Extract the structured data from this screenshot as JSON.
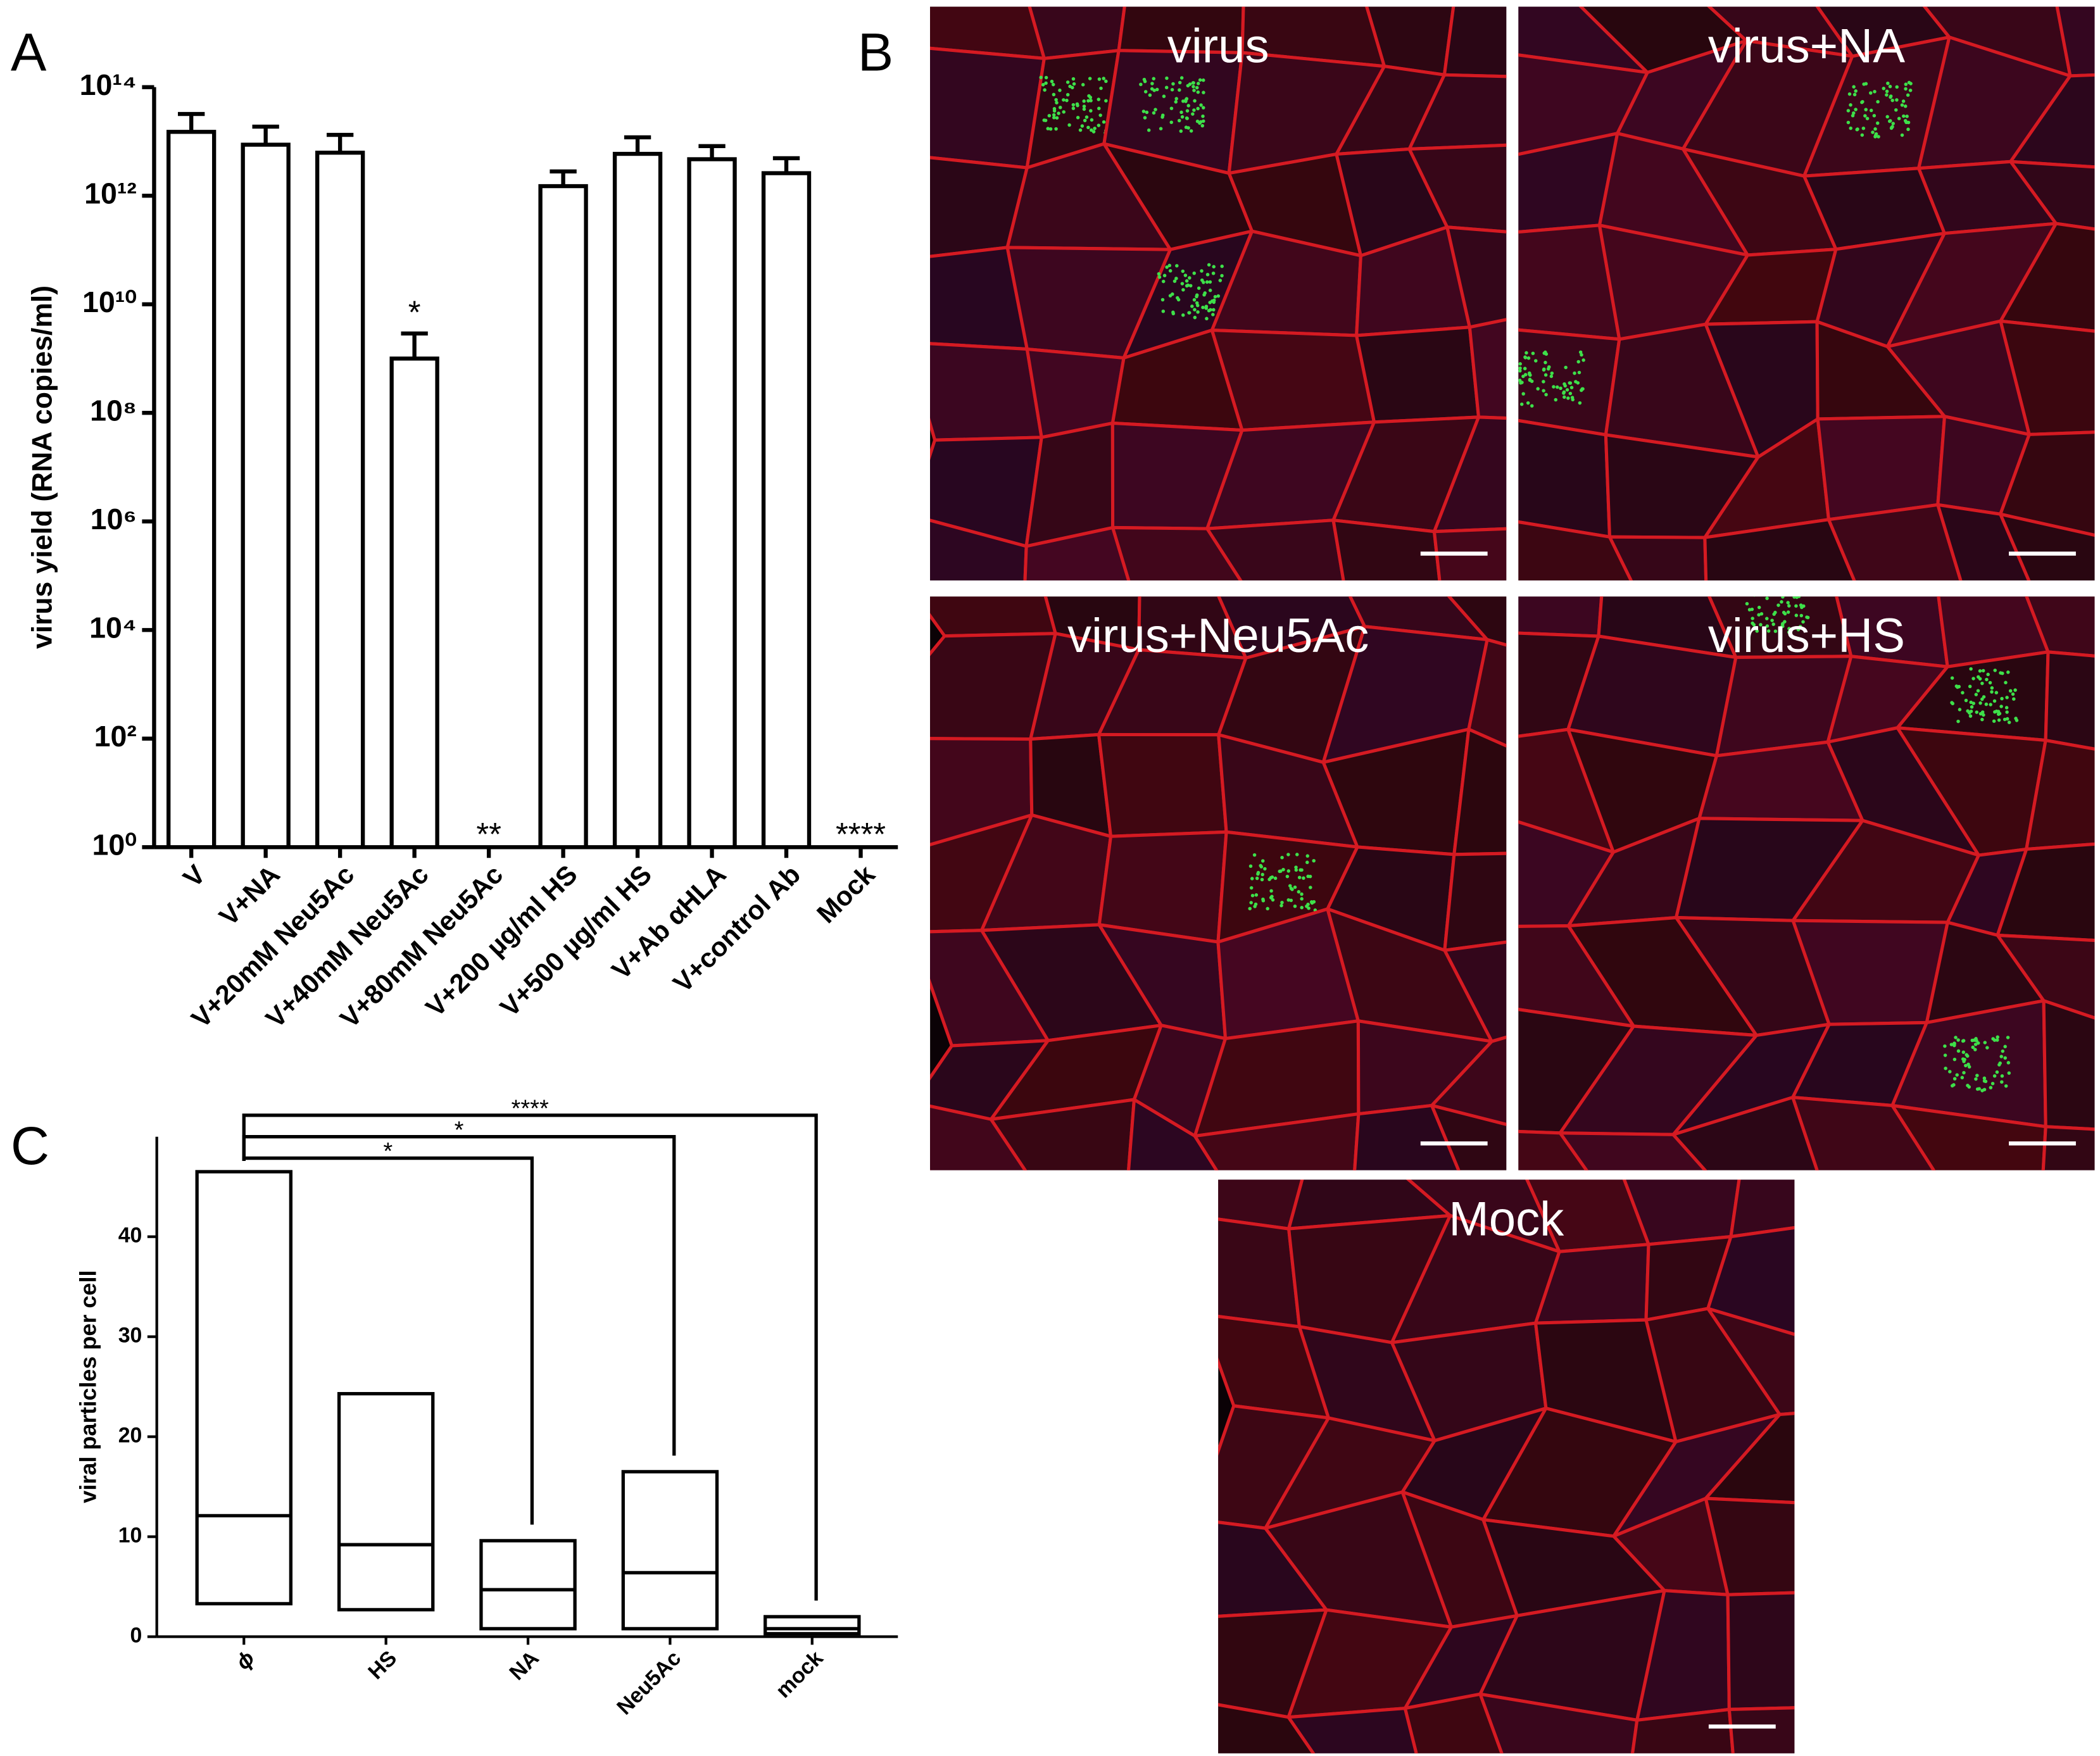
{
  "panel_labels": [
    "A",
    "B",
    "C"
  ],
  "chart_data": [
    {
      "type": "bar",
      "log_scale": true,
      "ylabel": "virus yield (RNA copies/ml)",
      "categories": [
        "V",
        "V+NA",
        "V+20mM Neu5Ac",
        "V+40mM Neu5Ac",
        "V+80mM Neu5Ac",
        "V+200 µg/ml HS",
        "V+500 µg/ml HS",
        "V+Ab αHLA",
        "V+control Ab",
        "Mock"
      ],
      "values": [
        15000000000000.0,
        8700000000000.0,
        6200000000000.0,
        1000000000.0,
        null,
        1500000000000.0,
        5900000000000.0,
        4700000000000.0,
        2600000000000.0,
        null
      ],
      "errors": [
        17000000000000.0,
        10000000000000.0,
        7000000000000.0,
        1900000000.0,
        null,
        1300000000000.0,
        6000000000000.0,
        3500000000000.0,
        2300000000000.0,
        null
      ],
      "significance": [
        null,
        null,
        null,
        "*",
        "**",
        null,
        null,
        null,
        null,
        "****"
      ],
      "color": "#ffffff",
      "edge_color": "#000000",
      "ylim": [
        1,
        100000000000000.0
      ],
      "yticks": [
        {
          "value": 1,
          "label": "10⁰"
        },
        {
          "value": 100,
          "label": "10²"
        },
        {
          "value": 10000,
          "label": "10⁴"
        },
        {
          "value": 1000000,
          "label": "10⁶"
        },
        {
          "value": 100000000,
          "label": "10⁸"
        },
        {
          "value": 10000000000,
          "label": "10¹⁰"
        },
        {
          "value": 1000000000000,
          "label": "10¹²"
        },
        {
          "value": 100000000000000,
          "label": "10¹⁴"
        }
      ]
    },
    {
      "type": "box",
      "ylabel": "viral particles per cell",
      "categories": [
        "ϕ",
        "HS",
        "NA",
        "Neu5Ac",
        "mock"
      ],
      "min": [
        3.3,
        2.7,
        0.8,
        0.8,
        0.3
      ],
      "median": [
        12.1,
        9.2,
        4.7,
        6.4,
        0.8
      ],
      "max": [
        46.5,
        24.3,
        9.6,
        16.5,
        2.0
      ],
      "significance": [
        null,
        null,
        "*",
        "*",
        "****"
      ],
      "edge_color": "#000000",
      "ylim": [
        0,
        50
      ],
      "yticks": [
        0,
        10,
        20,
        30,
        40
      ]
    }
  ],
  "micrographs": [
    {
      "label": "virus"
    },
    {
      "label": "virus+NA"
    },
    {
      "label": "virus+Neu5Ac"
    },
    {
      "label": "virus+HS"
    },
    {
      "label": "Mock"
    }
  ]
}
